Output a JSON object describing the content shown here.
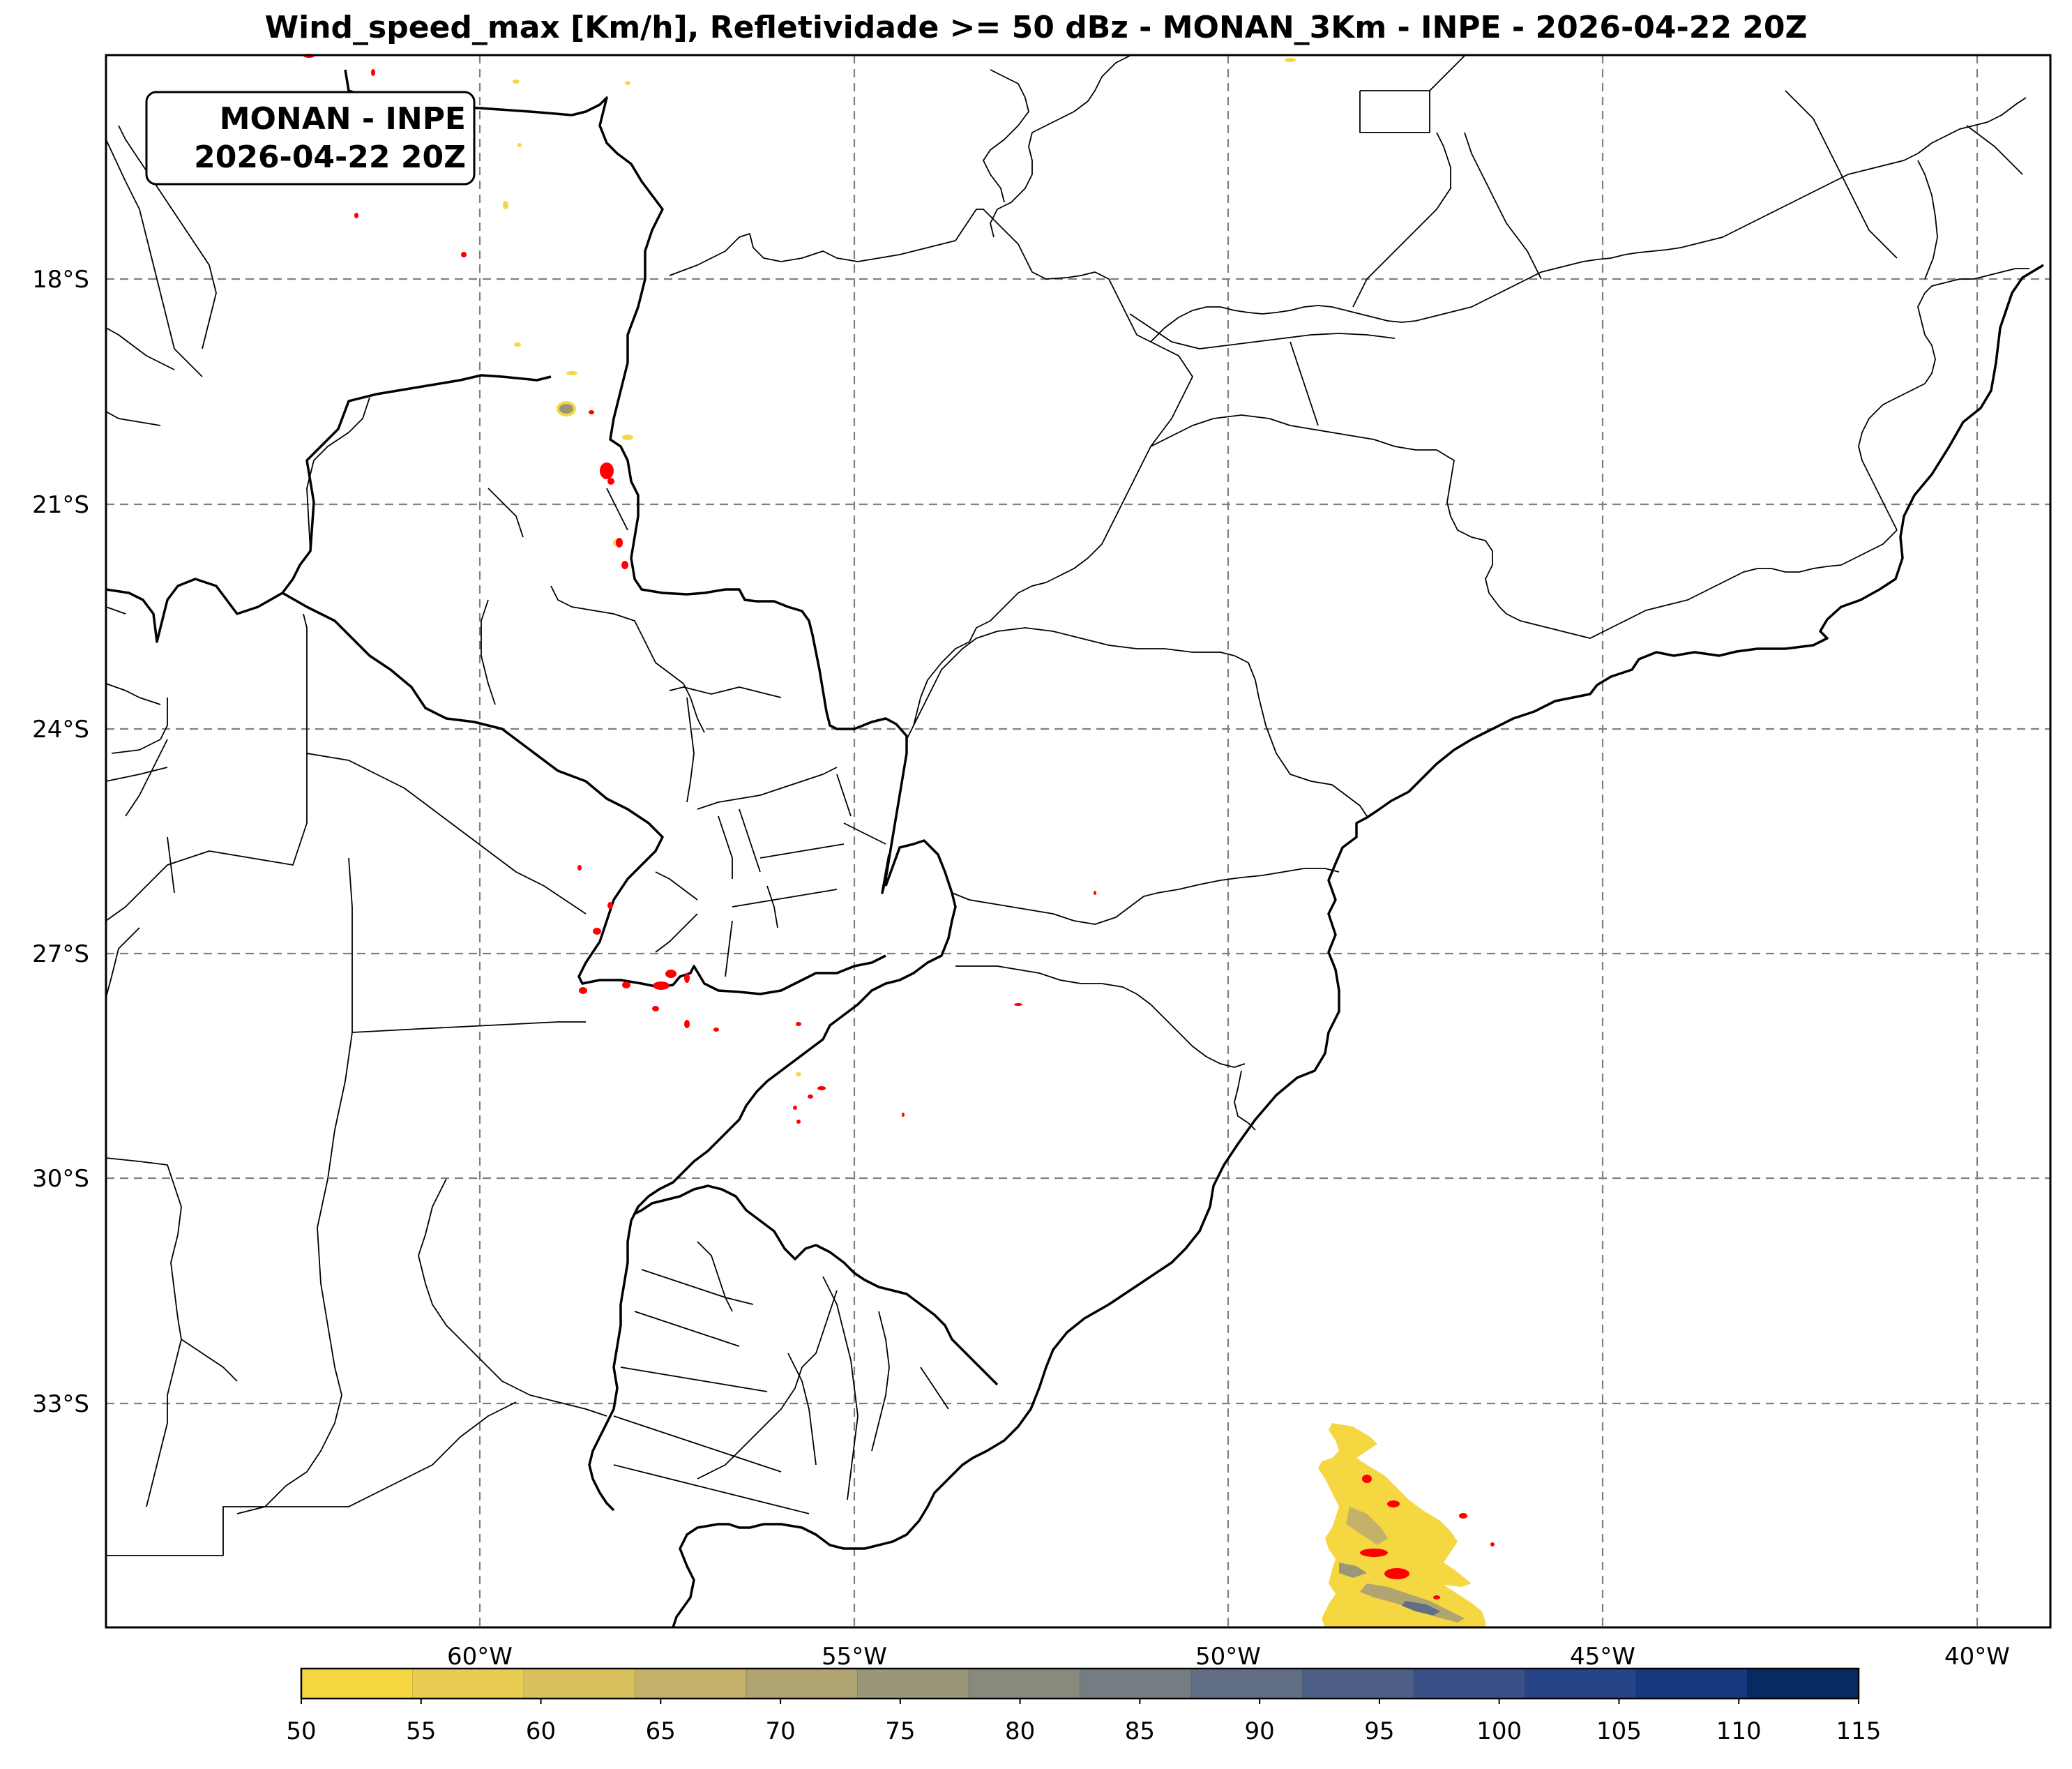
{
  "title": "Wind_speed_max [Km/h], Refletividade >= 50 dBz - MONAN_3Km - INPE - 2026-04-22 20Z",
  "badge": {
    "line1": "MONAN - INPE",
    "line2": "2026-04-22 20Z"
  },
  "lat_labels": [
    "18°S",
    "21°S",
    "24°S",
    "27°S",
    "30°S",
    "33°S"
  ],
  "lon_labels": [
    "60°W",
    "55°W",
    "50°W",
    "45°W",
    "40°W"
  ],
  "colorbar": {
    "ticks": [
      "50",
      "55",
      "60",
      "65",
      "70",
      "75",
      "80",
      "85",
      "90",
      "95",
      "100",
      "105",
      "110",
      "115"
    ],
    "colors": [
      "#f5d742",
      "#e8cd52",
      "#d8c05e",
      "#c4b169",
      "#afa472",
      "#9a9778",
      "#878a7d",
      "#747d81",
      "#616e84",
      "#4e6087",
      "#3a5188",
      "#274488",
      "#15387f",
      "#082a62"
    ]
  },
  "colors": {
    "reflectivity": "#ff0000",
    "border": "#000000",
    "grid": "#808080"
  }
}
